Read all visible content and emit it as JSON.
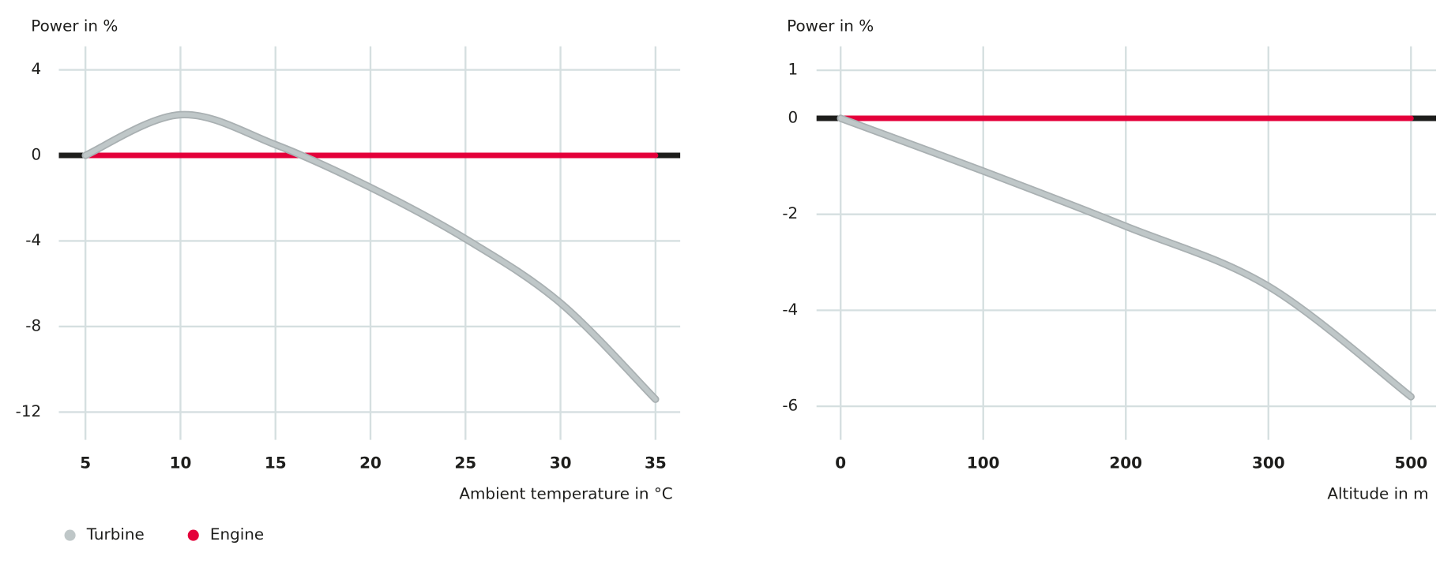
{
  "chart_data": [
    {
      "type": "line",
      "y_label": "Power in %",
      "x_label": "Ambient temperature in °C",
      "x": [
        5,
        10,
        15,
        20,
        25,
        30,
        35
      ],
      "series": [
        {
          "name": "Turbine",
          "color": "#bfc7c8",
          "values": [
            0,
            1.9,
            0.5,
            -1.5,
            -3.9,
            -6.9,
            -11.4
          ]
        },
        {
          "name": "Engine",
          "color": "#e4003a",
          "values": [
            0,
            0,
            0,
            0,
            0,
            0,
            0
          ]
        }
      ],
      "xlim": [
        3.6,
        36.3
      ],
      "xticks": [
        5,
        10,
        15,
        20,
        25,
        30,
        35
      ],
      "ylim": [
        -13.3,
        5.1
      ],
      "yticks": [
        4,
        0,
        -4,
        -8,
        -12
      ],
      "grid": true
    },
    {
      "type": "line",
      "y_label": "Power in %",
      "x_label": "Altitude in m",
      "categories": [
        "0",
        "100",
        "200",
        "300",
        "500"
      ],
      "series": [
        {
          "color": "#bfc7c8",
          "values": [
            0,
            -1.1,
            -2.25,
            -3.5,
            -5.8
          ]
        },
        {
          "color": "#e4003a",
          "values": [
            0,
            0,
            0,
            0,
            0
          ]
        }
      ],
      "ylim": [
        -6.7,
        1.5
      ],
      "yticks": [
        1,
        0,
        -2,
        -4,
        -6
      ],
      "grid": true
    }
  ]
}
